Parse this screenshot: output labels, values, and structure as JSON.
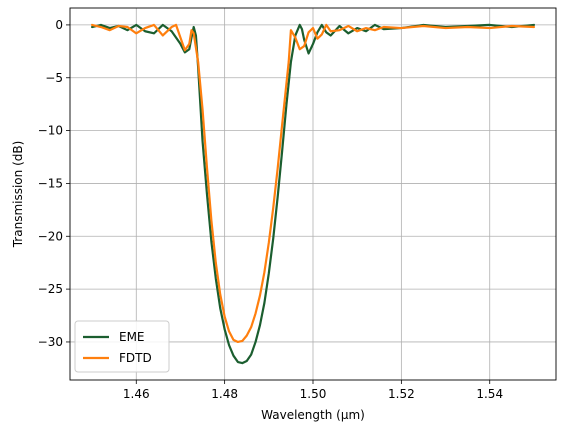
{
  "chart_data": {
    "type": "line",
    "title": "",
    "xlabel": "Wavelength (µm)",
    "ylabel": "Transmission (dB)",
    "xlim": [
      1.445,
      1.555
    ],
    "ylim": [
      -33.6,
      1.6
    ],
    "xticks": [
      1.46,
      1.48,
      1.5,
      1.52,
      1.54
    ],
    "xtick_labels": [
      "1.46",
      "1.48",
      "1.50",
      "1.52",
      "1.54"
    ],
    "yticks": [
      0,
      -5,
      -10,
      -15,
      -20,
      -25,
      -30
    ],
    "ytick_labels": [
      "0",
      "−5",
      "−10",
      "−15",
      "−20",
      "−25",
      "−30"
    ],
    "grid": true,
    "legend_position": "lower-left",
    "series": [
      {
        "name": "EME",
        "color": "#1b5e2f",
        "x": [
          1.45,
          1.452,
          1.454,
          1.456,
          1.458,
          1.46,
          1.462,
          1.464,
          1.466,
          1.468,
          1.47,
          1.471,
          1.472,
          1.4725,
          1.473,
          1.4735,
          1.474,
          1.4745,
          1.475,
          1.476,
          1.477,
          1.478,
          1.479,
          1.48,
          1.481,
          1.482,
          1.483,
          1.484,
          1.485,
          1.486,
          1.487,
          1.488,
          1.489,
          1.49,
          1.491,
          1.492,
          1.493,
          1.494,
          1.495,
          1.496,
          1.497,
          1.4975,
          1.498,
          1.499,
          1.5,
          1.501,
          1.502,
          1.503,
          1.504,
          1.506,
          1.508,
          1.51,
          1.512,
          1.514,
          1.516,
          1.52,
          1.525,
          1.53,
          1.535,
          1.54,
          1.545,
          1.55
        ],
        "y": [
          -0.2,
          0.0,
          -0.3,
          -0.1,
          -0.5,
          0.0,
          -0.6,
          -0.8,
          0.0,
          -0.6,
          -1.8,
          -2.6,
          -2.3,
          -1.2,
          -0.2,
          -1.0,
          -4.0,
          -7.5,
          -11.0,
          -16.0,
          -20.5,
          -24.0,
          -26.8,
          -28.8,
          -30.3,
          -31.3,
          -31.9,
          -32.0,
          -31.8,
          -31.2,
          -30.0,
          -28.4,
          -26.3,
          -23.5,
          -20.2,
          -16.3,
          -12.0,
          -7.5,
          -3.5,
          -1.0,
          0.0,
          -0.4,
          -1.4,
          -2.7,
          -1.8,
          -0.7,
          0.0,
          -0.7,
          -1.0,
          -0.1,
          -0.8,
          -0.3,
          -0.6,
          0.0,
          -0.4,
          -0.3,
          0.0,
          -0.2,
          -0.1,
          0.0,
          -0.2,
          0.0
        ]
      },
      {
        "name": "FDTD",
        "color": "#ff7f0e",
        "x": [
          1.45,
          1.452,
          1.454,
          1.456,
          1.458,
          1.46,
          1.462,
          1.464,
          1.466,
          1.468,
          1.469,
          1.47,
          1.471,
          1.472,
          1.4725,
          1.473,
          1.474,
          1.475,
          1.476,
          1.477,
          1.478,
          1.479,
          1.48,
          1.481,
          1.482,
          1.483,
          1.484,
          1.485,
          1.486,
          1.487,
          1.488,
          1.489,
          1.49,
          1.491,
          1.492,
          1.493,
          1.494,
          1.4945,
          1.495,
          1.496,
          1.497,
          1.498,
          1.499,
          1.5,
          1.501,
          1.502,
          1.503,
          1.504,
          1.506,
          1.508,
          1.51,
          1.512,
          1.514,
          1.516,
          1.52,
          1.525,
          1.53,
          1.535,
          1.54,
          1.545,
          1.55
        ],
        "y": [
          0.0,
          -0.2,
          -0.5,
          -0.1,
          -0.2,
          -0.8,
          -0.3,
          0.0,
          -1.0,
          -0.2,
          0.0,
          -1.2,
          -2.4,
          -1.8,
          -0.5,
          -0.8,
          -3.5,
          -8.0,
          -13.5,
          -18.5,
          -22.5,
          -25.5,
          -27.6,
          -29.0,
          -29.8,
          -30.0,
          -29.9,
          -29.4,
          -28.6,
          -27.3,
          -25.6,
          -23.4,
          -20.6,
          -17.3,
          -13.6,
          -9.5,
          -5.5,
          -3.5,
          -0.5,
          -1.2,
          -2.3,
          -2.0,
          -0.7,
          -0.3,
          -1.3,
          -0.9,
          0.0,
          -0.6,
          -0.5,
          -0.1,
          -0.6,
          -0.3,
          -0.5,
          -0.2,
          -0.3,
          -0.1,
          -0.3,
          -0.2,
          -0.3,
          -0.1,
          -0.2
        ]
      }
    ]
  }
}
